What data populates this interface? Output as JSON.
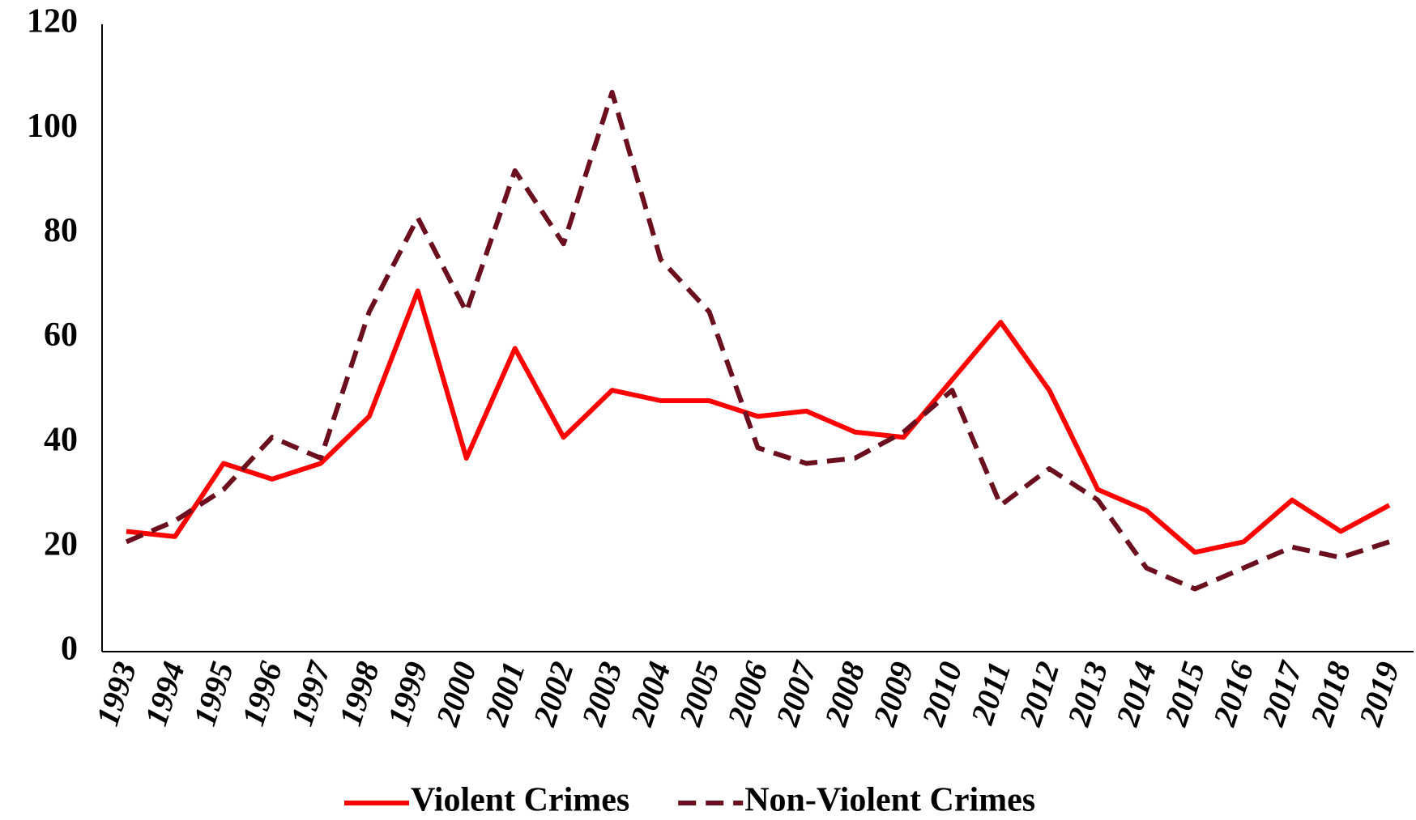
{
  "chart_data": {
    "type": "line",
    "categories": [
      "1993",
      "1994",
      "1995",
      "1996",
      "1997",
      "1998",
      "1999",
      "2000",
      "2001",
      "2002",
      "2003",
      "2004",
      "2005",
      "2006",
      "2007",
      "2008",
      "2009",
      "2010",
      "2011",
      "2012",
      "2013",
      "2014",
      "2015",
      "2016",
      "2017",
      "2018",
      "2019"
    ],
    "series": [
      {
        "name": "Violent Crimes",
        "color": "#ff0000",
        "dash": false,
        "values": [
          23,
          22,
          36,
          33,
          36,
          45,
          69,
          37,
          58,
          41,
          50,
          48,
          48,
          45,
          46,
          42,
          41,
          52,
          63,
          50,
          31,
          27,
          19,
          21,
          29,
          23,
          28
        ]
      },
      {
        "name": "Non-Violent Crimes",
        "color": "#6b0f1f",
        "dash": true,
        "values": [
          21,
          25,
          31,
          41,
          37,
          65,
          83,
          65,
          92,
          78,
          107,
          75,
          65,
          39,
          36,
          37,
          42,
          50,
          28,
          35,
          29,
          16,
          12,
          16,
          20,
          18,
          21
        ]
      }
    ],
    "ylim": [
      0,
      120
    ],
    "yticks": [
      0,
      20,
      40,
      60,
      80,
      100,
      120
    ],
    "grid": false,
    "legend": "bottom"
  }
}
